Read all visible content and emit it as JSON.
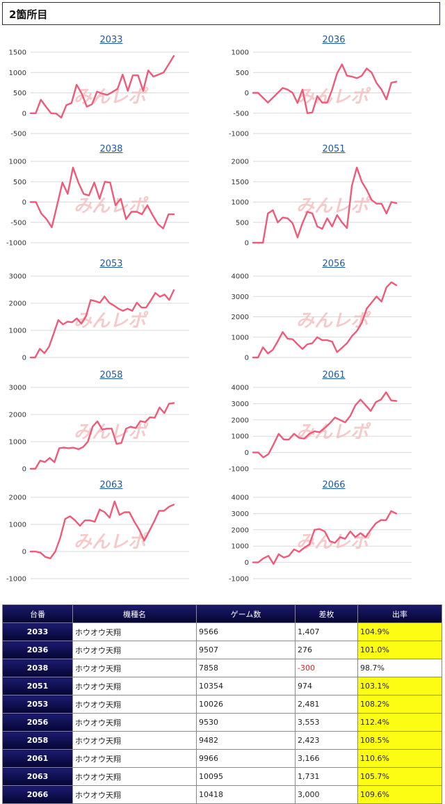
{
  "section_title": "2箇所目",
  "watermark": "みんレポ",
  "colors": {
    "line": "#f05a78",
    "highlight": "#fdfd13",
    "header": "#0b0b44",
    "negative": "#e02020"
  },
  "chart_data": [
    {
      "type": "line",
      "title": "2033",
      "yticks": [
        1500,
        1000,
        500,
        0,
        -500
      ],
      "ylim": [
        -500,
        1500
      ],
      "values": [
        0,
        0,
        330,
        160,
        0,
        -10,
        -110,
        200,
        250,
        700,
        480,
        160,
        220,
        530,
        480,
        450,
        520,
        600,
        950,
        550,
        930,
        930,
        550,
        1050,
        900,
        950,
        1000,
        1200,
        1407
      ]
    },
    {
      "type": "line",
      "title": "2036",
      "yticks": [
        1000,
        500,
        0,
        -500,
        -1000
      ],
      "ylim": [
        -1000,
        1000
      ],
      "values": [
        0,
        0,
        -120,
        -240,
        -120,
        0,
        120,
        80,
        0,
        -250,
        80,
        -500,
        -480,
        -80,
        -240,
        -240,
        80,
        480,
        700,
        420,
        400,
        360,
        420,
        600,
        500,
        240,
        80,
        -160,
        250,
        276
      ]
    },
    {
      "type": "line",
      "title": "2038",
      "yticks": [
        1000,
        500,
        0,
        -500,
        -1000
      ],
      "ylim": [
        -1000,
        1000
      ],
      "values": [
        0,
        0,
        -280,
        -420,
        -620,
        -80,
        480,
        200,
        850,
        480,
        200,
        160,
        480,
        80,
        500,
        480,
        -80,
        80,
        -420,
        -240,
        -240,
        -300,
        -80,
        -320,
        -540,
        -650,
        -300,
        -300
      ]
    },
    {
      "type": "line",
      "title": "2051",
      "yticks": [
        2000,
        1500,
        1000,
        500,
        0
      ],
      "ylim": [
        0,
        2000
      ],
      "values": [
        0,
        0,
        0,
        720,
        800,
        500,
        620,
        600,
        480,
        130,
        480,
        760,
        720,
        400,
        340,
        600,
        400,
        680,
        500,
        360,
        1400,
        1850,
        1500,
        1300,
        1050,
        960,
        960,
        720,
        1000,
        974
      ]
    },
    {
      "type": "line",
      "title": "2053",
      "yticks": [
        3000,
        2000,
        1000,
        0
      ],
      "ylim": [
        0,
        3000
      ],
      "values": [
        0,
        0,
        320,
        160,
        400,
        880,
        1380,
        1220,
        1320,
        1300,
        1440,
        1250,
        1520,
        2120,
        2080,
        2020,
        2250,
        2020,
        1920,
        1800,
        1720,
        1800,
        1720,
        2020,
        1840,
        1840,
        2100,
        2380,
        2240,
        2320,
        2120,
        2481
      ]
    },
    {
      "type": "line",
      "title": "2056",
      "yticks": [
        4000,
        3000,
        2000,
        1000,
        0
      ],
      "ylim": [
        0,
        4000
      ],
      "values": [
        0,
        0,
        500,
        200,
        380,
        800,
        1250,
        920,
        900,
        650,
        420,
        650,
        700,
        1000,
        850,
        850,
        780,
        260,
        480,
        700,
        1050,
        1300,
        1700,
        2400,
        2700,
        3000,
        2750,
        3450,
        3700,
        3553
      ]
    },
    {
      "type": "line",
      "title": "2058",
      "yticks": [
        3000,
        2000,
        1000,
        0
      ],
      "ylim": [
        0,
        3000
      ],
      "values": [
        0,
        0,
        300,
        250,
        400,
        240,
        760,
        780,
        760,
        780,
        720,
        800,
        1000,
        1560,
        1750,
        1450,
        1480,
        1480,
        920,
        950,
        1480,
        1550,
        1500,
        1760,
        1720,
        1900,
        1880,
        2260,
        2050,
        2400,
        2423
      ]
    },
    {
      "type": "line",
      "title": "2061",
      "yticks": [
        4000,
        3000,
        2000,
        1000,
        0,
        -1000
      ],
      "ylim": [
        -1000,
        4000
      ],
      "values": [
        0,
        0,
        -300,
        -100,
        500,
        1150,
        800,
        800,
        1150,
        900,
        850,
        1150,
        1300,
        1250,
        1500,
        1800,
        2150,
        2000,
        1850,
        2250,
        2900,
        3250,
        2900,
        2550,
        3100,
        3250,
        3700,
        3200,
        3166
      ]
    },
    {
      "type": "line",
      "title": "2063",
      "yticks": [
        2000,
        1000,
        0,
        -1000
      ],
      "ylim": [
        -1000,
        2000
      ],
      "values": [
        0,
        0,
        -40,
        -200,
        -250,
        0,
        500,
        1200,
        1300,
        1150,
        950,
        1150,
        1150,
        1100,
        1550,
        1450,
        1250,
        1850,
        1350,
        1450,
        1450,
        1100,
        800,
        400,
        750,
        1100,
        1500,
        1500,
        1650,
        1731
      ]
    },
    {
      "type": "line",
      "title": "2066",
      "yticks": [
        4000,
        3000,
        2000,
        1000,
        0,
        -1000
      ],
      "ylim": [
        -1000,
        4000
      ],
      "values": [
        0,
        0,
        250,
        400,
        -100,
        500,
        300,
        400,
        800,
        650,
        900,
        1100,
        2000,
        2050,
        1900,
        1300,
        1200,
        1550,
        1450,
        1900,
        1550,
        1800,
        1550,
        2000,
        2400,
        2600,
        2600,
        3150,
        3000
      ]
    }
  ],
  "table": {
    "headers": [
      "台番",
      "機種名",
      "ゲーム数",
      "差枚",
      "出率"
    ],
    "rows": [
      {
        "id": "2033",
        "name": "ホウオウ天翔",
        "games": "9566",
        "diff": "1,407",
        "rate": "104.9%",
        "neg": false,
        "hi": true
      },
      {
        "id": "2036",
        "name": "ホウオウ天翔",
        "games": "9507",
        "diff": "276",
        "rate": "101.0%",
        "neg": false,
        "hi": true
      },
      {
        "id": "2038",
        "name": "ホウオウ天翔",
        "games": "7858",
        "diff": "-300",
        "rate": "98.7%",
        "neg": true,
        "hi": false
      },
      {
        "id": "2051",
        "name": "ホウオウ天翔",
        "games": "10354",
        "diff": "974",
        "rate": "103.1%",
        "neg": false,
        "hi": true
      },
      {
        "id": "2053",
        "name": "ホウオウ天翔",
        "games": "10026",
        "diff": "2,481",
        "rate": "108.2%",
        "neg": false,
        "hi": true
      },
      {
        "id": "2056",
        "name": "ホウオウ天翔",
        "games": "9530",
        "diff": "3,553",
        "rate": "112.4%",
        "neg": false,
        "hi": true
      },
      {
        "id": "2058",
        "name": "ホウオウ天翔",
        "games": "9482",
        "diff": "2,423",
        "rate": "108.5%",
        "neg": false,
        "hi": true
      },
      {
        "id": "2061",
        "name": "ホウオウ天翔",
        "games": "9966",
        "diff": "3,166",
        "rate": "110.6%",
        "neg": false,
        "hi": true
      },
      {
        "id": "2063",
        "name": "ホウオウ天翔",
        "games": "10095",
        "diff": "1,731",
        "rate": "105.7%",
        "neg": false,
        "hi": true
      },
      {
        "id": "2066",
        "name": "ホウオウ天翔",
        "games": "10418",
        "diff": "3,000",
        "rate": "109.6%",
        "neg": false,
        "hi": true
      }
    ]
  }
}
